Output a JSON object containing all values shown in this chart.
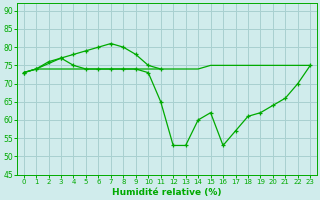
{
  "xlabel": "Humidité relative (%)",
  "x": [
    0,
    1,
    2,
    3,
    4,
    5,
    6,
    7,
    8,
    9,
    10,
    11,
    12,
    13,
    14,
    15,
    16,
    17,
    18,
    19,
    20,
    21,
    22,
    23
  ],
  "line_main": [
    73,
    74,
    76,
    77,
    75,
    74,
    74,
    74,
    74,
    74,
    73,
    65,
    53,
    53,
    60,
    62,
    53,
    57,
    61,
    62,
    64,
    66,
    70,
    75
  ],
  "line_peak_x": [
    0,
    1,
    3,
    4,
    5,
    6,
    7,
    8,
    9,
    10,
    11
  ],
  "line_peak_y": [
    73,
    74,
    77,
    78,
    79,
    80,
    81,
    80,
    78,
    75,
    74
  ],
  "line_flat_x": [
    0,
    1,
    2,
    3,
    4,
    5,
    6,
    7,
    8,
    9,
    10,
    11,
    12,
    13,
    14,
    15,
    16,
    17,
    18,
    19,
    20,
    21,
    22,
    23
  ],
  "line_flat_y": [
    73,
    74,
    74,
    74,
    74,
    74,
    74,
    74,
    74,
    74,
    74,
    74,
    74,
    74,
    74,
    75,
    75,
    75,
    75,
    75,
    75,
    75,
    75,
    75
  ],
  "bg_color": "#d0ecec",
  "grid_color": "#a8d0d0",
  "line_color": "#00aa00",
  "ylim": [
    45,
    92
  ],
  "yticks": [
    45,
    50,
    55,
    60,
    65,
    70,
    75,
    80,
    85,
    90
  ],
  "xlim": [
    -0.5,
    23.5
  ]
}
